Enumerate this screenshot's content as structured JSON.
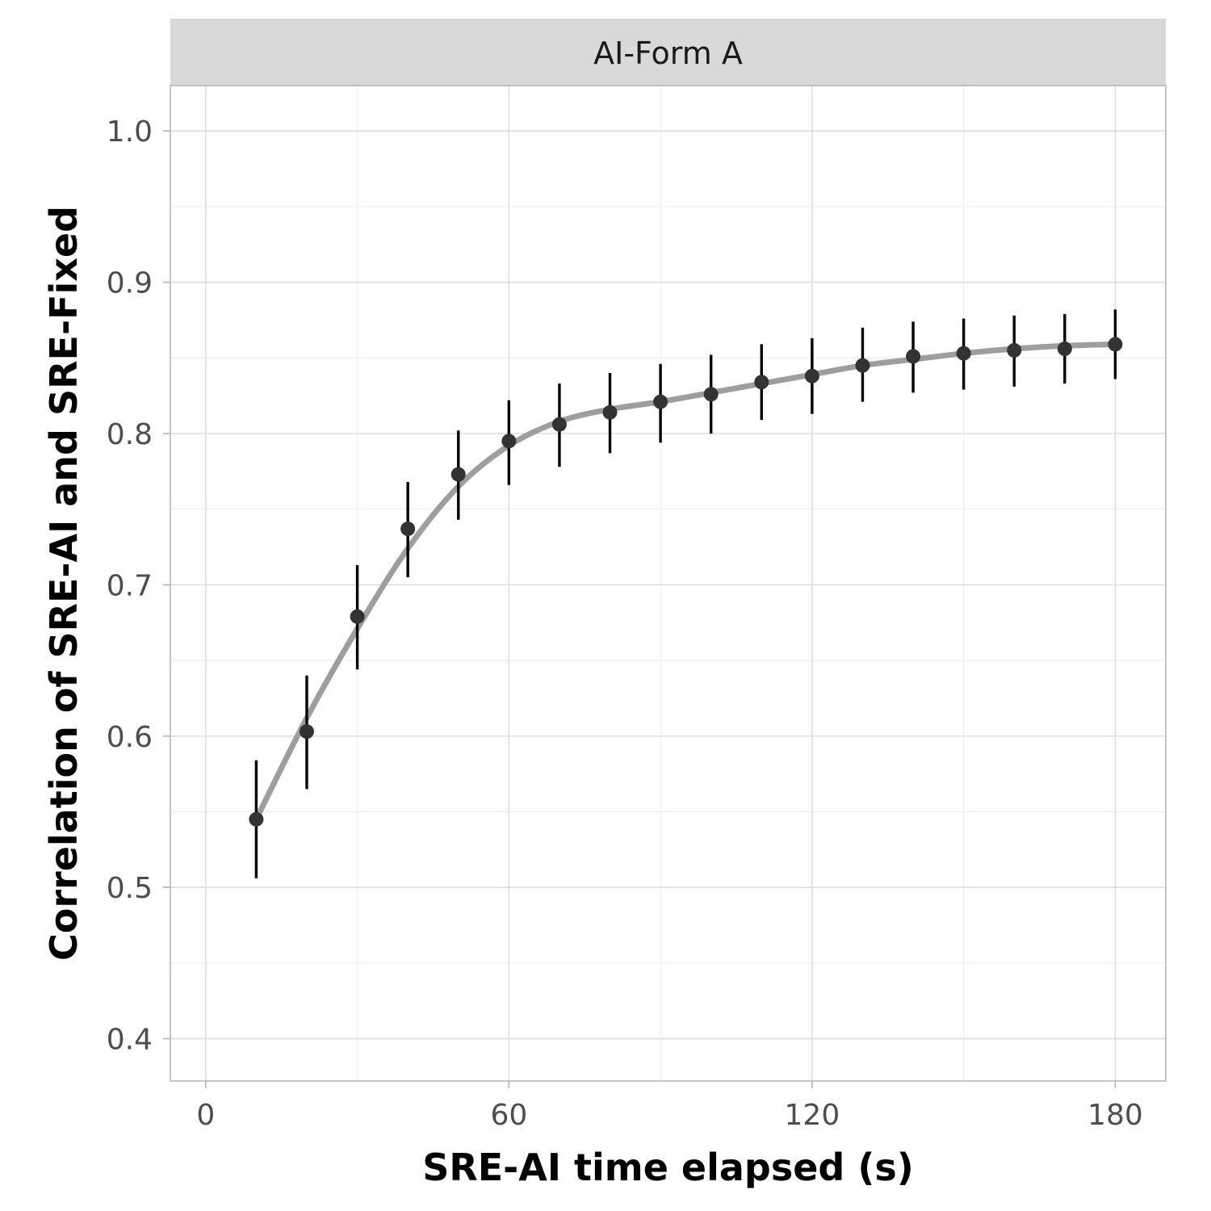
{
  "chart_data": {
    "type": "scatter",
    "facet_label": "AI-Form A",
    "xlabel": "SRE-AI time elapsed (s)",
    "ylabel": "Correlation of SRE-AI and SRE-Fixed",
    "xlim": [
      -7,
      190
    ],
    "ylim": [
      0.372,
      1.03
    ],
    "x_ticks": [
      0,
      60,
      120,
      180
    ],
    "x_tick_labels": [
      "0",
      "60",
      "120",
      "180"
    ],
    "y_ticks": [
      0.4,
      0.5,
      0.6,
      0.7,
      0.8,
      0.9,
      1.0
    ],
    "y_tick_labels": [
      "0.4",
      "0.5",
      "0.6",
      "0.7",
      "0.8",
      "0.9",
      "1.0"
    ],
    "grid": true,
    "series": [
      {
        "type": "point_errorbar",
        "x": [
          10,
          20,
          30,
          40,
          50,
          60,
          70,
          80,
          90,
          100,
          110,
          120,
          130,
          140,
          150,
          160,
          170,
          180
        ],
        "y": [
          0.545,
          0.603,
          0.679,
          0.737,
          0.773,
          0.795,
          0.806,
          0.814,
          0.821,
          0.826,
          0.834,
          0.838,
          0.845,
          0.851,
          0.853,
          0.855,
          0.856,
          0.859
        ],
        "lower": [
          0.506,
          0.565,
          0.644,
          0.705,
          0.743,
          0.766,
          0.778,
          0.787,
          0.794,
          0.8,
          0.809,
          0.813,
          0.821,
          0.827,
          0.829,
          0.831,
          0.833,
          0.836
        ],
        "upper": [
          0.584,
          0.64,
          0.713,
          0.768,
          0.802,
          0.822,
          0.833,
          0.84,
          0.846,
          0.852,
          0.859,
          0.863,
          0.87,
          0.874,
          0.876,
          0.878,
          0.879,
          0.882
        ],
        "color": "#1a1a1a"
      },
      {
        "type": "smooth_line",
        "x": [
          10,
          20,
          30,
          40,
          50,
          60,
          70,
          80,
          90,
          100,
          110,
          120,
          130,
          140,
          150,
          160,
          170,
          180
        ],
        "y": [
          0.545,
          0.612,
          0.671,
          0.724,
          0.765,
          0.792,
          0.808,
          0.816,
          0.821,
          0.827,
          0.833,
          0.839,
          0.845,
          0.849,
          0.853,
          0.856,
          0.858,
          0.859
        ],
        "color": "#9e9e9e"
      }
    ]
  }
}
